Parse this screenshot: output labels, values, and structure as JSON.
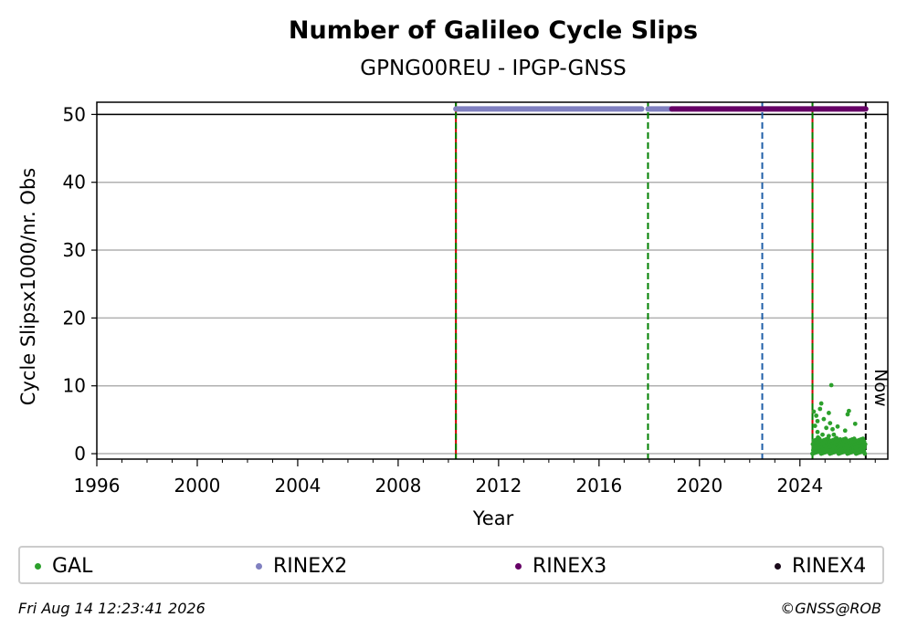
{
  "chart_data": {
    "type": "scatter",
    "title": "Number of Galileo Cycle Slips",
    "subtitle": "GPNG00REU - IPGP-GNSS",
    "xlabel": "Year",
    "ylabel": "Cycle Slipsx1000/nr. Obs",
    "xlim": [
      1996,
      2027.5
    ],
    "ylim": [
      -0.8,
      51.8
    ],
    "x_ticks": [
      1996,
      2000,
      2004,
      2008,
      2012,
      2016,
      2020,
      2024
    ],
    "y_ticks": [
      0,
      10,
      20,
      30,
      40,
      50
    ],
    "grid": "horizontal",
    "legend_placement": "bottom",
    "now_label": "Now",
    "reference_line_y": 50,
    "vertical_lines": [
      {
        "x": 2010.3,
        "style": "green-red-dashed"
      },
      {
        "x": 2017.95,
        "style": "green-dashed"
      },
      {
        "x": 2022.5,
        "style": "blue-dashed"
      },
      {
        "x": 2024.5,
        "style": "green-red-dashed"
      },
      {
        "x": 2026.62,
        "style": "black-dashed"
      }
    ],
    "series": [
      {
        "name": "GAL",
        "color": "#2ca02c",
        "points": [
          [
            2024.55,
            6.2
          ],
          [
            2024.6,
            4.1
          ],
          [
            2024.65,
            5.6
          ],
          [
            2024.7,
            3.2
          ],
          [
            2024.72,
            2.4
          ],
          [
            2024.8,
            6.6
          ],
          [
            2024.85,
            7.4
          ],
          [
            2024.9,
            2.8
          ],
          [
            2024.95,
            5.1
          ],
          [
            2025.0,
            1.6
          ],
          [
            2025.05,
            3.8
          ],
          [
            2025.1,
            2.2
          ],
          [
            2025.15,
            6.0
          ],
          [
            2025.2,
            4.5
          ],
          [
            2025.25,
            1.2
          ],
          [
            2025.3,
            3.6
          ],
          [
            2025.35,
            2.8
          ],
          [
            2025.4,
            1.9
          ],
          [
            2025.45,
            2.3
          ],
          [
            2025.5,
            4.0
          ],
          [
            2025.6,
            1.4
          ],
          [
            2025.7,
            0.9
          ],
          [
            2025.8,
            3.4
          ],
          [
            2025.9,
            5.8
          ],
          [
            2025.95,
            6.3
          ],
          [
            2026.0,
            1.2
          ],
          [
            2026.1,
            0.8
          ],
          [
            2026.2,
            4.4
          ],
          [
            2026.3,
            1.0
          ],
          [
            2026.4,
            0.6
          ],
          [
            2026.5,
            0.9
          ],
          [
            2026.55,
            0.4
          ],
          [
            2025.25,
            10.1
          ],
          [
            2024.6,
            1.0
          ],
          [
            2024.75,
            0.6
          ],
          [
            2025.0,
            0.7
          ],
          [
            2025.5,
            0.5
          ],
          [
            2026.0,
            0.3
          ],
          [
            2024.9,
            1.8
          ],
          [
            2025.15,
            2.6
          ],
          [
            2025.3,
            0.9
          ],
          [
            2025.6,
            2.1
          ],
          [
            2025.85,
            1.5
          ],
          [
            2026.25,
            1.3
          ],
          [
            2024.7,
            4.8
          ]
        ]
      },
      {
        "name": "RINEX2",
        "color": "#8080c0",
        "segments": [
          [
            2010.3,
            2017.7
          ],
          [
            2017.95,
            2018.9
          ]
        ],
        "y": 50.8
      },
      {
        "name": "RINEX3",
        "color": "#660066",
        "segments": [
          [
            2018.9,
            2026.62
          ]
        ],
        "y": 50.8
      },
      {
        "name": "RINEX4",
        "color": "#1a0a1a",
        "segments": [],
        "y": 50.8
      }
    ]
  },
  "footer": {
    "timestamp": "Fri Aug 14 12:23:41 2026",
    "copyright": "©GNSS@ROB"
  }
}
